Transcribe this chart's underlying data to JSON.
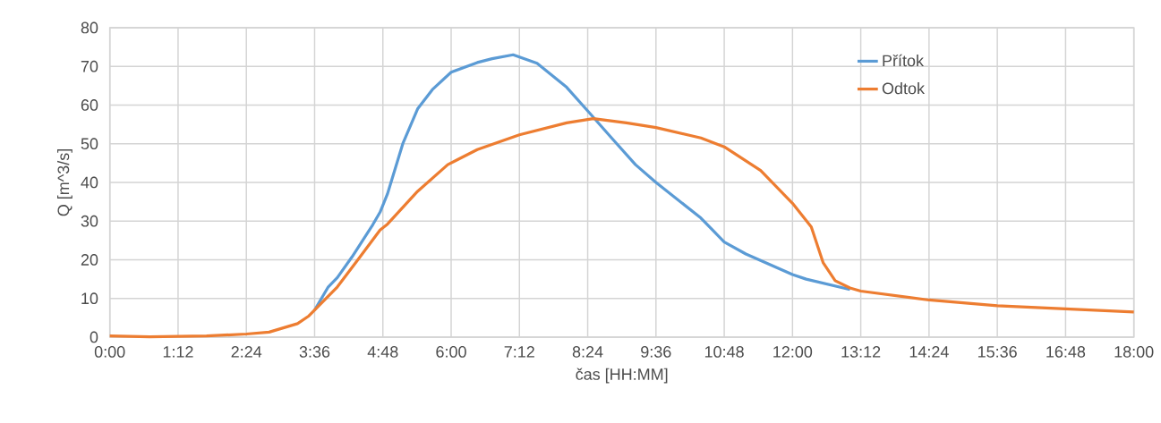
{
  "chart_data": {
    "type": "line",
    "xlabel": "čas [HH:MM]",
    "ylabel": "Q [m^3/s]",
    "xlim": [
      0,
      18
    ],
    "ylim": [
      0,
      80
    ],
    "xticks": [
      {
        "value": 0,
        "label": "0:00"
      },
      {
        "value": 1.2,
        "label": "1:12"
      },
      {
        "value": 2.4,
        "label": "2:24"
      },
      {
        "value": 3.6,
        "label": "3:36"
      },
      {
        "value": 4.8,
        "label": "4:48"
      },
      {
        "value": 6,
        "label": "6:00"
      },
      {
        "value": 7.2,
        "label": "7:12"
      },
      {
        "value": 8.4,
        "label": "8:24"
      },
      {
        "value": 9.6,
        "label": "9:36"
      },
      {
        "value": 10.8,
        "label": "10:48"
      },
      {
        "value": 12,
        "label": "12:00"
      },
      {
        "value": 13.2,
        "label": "13:12"
      },
      {
        "value": 14.4,
        "label": "14:24"
      },
      {
        "value": 15.6,
        "label": "15:36"
      },
      {
        "value": 16.8,
        "label": "16:48"
      },
      {
        "value": 18,
        "label": "18:00"
      }
    ],
    "yticks": [
      0,
      10,
      20,
      30,
      40,
      50,
      60,
      70,
      80
    ],
    "grid": true,
    "legend": "top right",
    "marker": "none",
    "line_style": "solid",
    "series": [
      {
        "name": "Přítok",
        "color": "#5b9bd5",
        "x": [
          3.6,
          3.84,
          4.0,
          4.26,
          4.62,
          4.75,
          4.88,
          5.15,
          5.41,
          5.67,
          6.0,
          6.46,
          6.72,
          7.09,
          7.51,
          8.03,
          8.4,
          8.82,
          9.24,
          9.6,
          10.39,
          10.8,
          11.18,
          12.0,
          12.24,
          13.01
        ],
        "values": [
          7,
          13,
          15.4,
          20.8,
          29,
          32.3,
          37,
          50,
          59,
          64,
          68.5,
          71,
          72,
          73,
          70.8,
          64.6,
          58.5,
          51.5,
          44.6,
          40,
          30.8,
          24.6,
          21.5,
          16.2,
          15,
          12.3
        ]
      },
      {
        "name": "Odtok",
        "color": "#ed7d31",
        "x": [
          0,
          0.7,
          1.7,
          2.4,
          2.8,
          3.3,
          3.5,
          4.0,
          4.36,
          4.75,
          4.88,
          5.41,
          5.94,
          6.46,
          7.2,
          8.03,
          8.5,
          9.08,
          9.6,
          10.39,
          10.8,
          11.44,
          12.0,
          12.33,
          12.54,
          12.75,
          13.01,
          13.2,
          14.4,
          15.6,
          16.8,
          18.0
        ],
        "values": [
          0.3,
          0.1,
          0.3,
          0.8,
          1.3,
          3.5,
          5.5,
          13,
          20,
          27.7,
          29.2,
          37.7,
          44.6,
          48.5,
          52.3,
          55.4,
          56.5,
          55.4,
          54.2,
          51.5,
          49.2,
          43.1,
          34.6,
          28.5,
          19.2,
          14.6,
          12.7,
          11.9,
          9.6,
          8.1,
          7.3,
          6.5
        ]
      }
    ]
  }
}
